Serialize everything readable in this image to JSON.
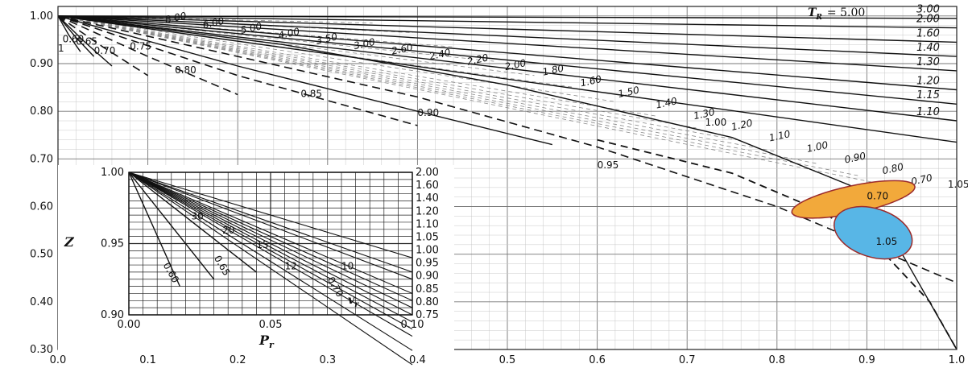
{
  "chart_data": [
    {
      "type": "line",
      "x_tick_labels": [
        "0.0",
        "0.1",
        "0.2",
        "0.3",
        "0.4",
        "0.5",
        "0.6",
        "0.7",
        "0.8",
        "0.9",
        "1.0"
      ],
      "y_tick_labels": [
        "0.30",
        "0.40",
        "0.50",
        "0.60",
        "0.70",
        "0.80",
        "0.90",
        "1.00"
      ],
      "xlim": [
        0.0,
        1.0
      ],
      "ylim": [
        0.3,
        1.02
      ],
      "grid": true,
      "tr_header": "T",
      "tr_header_subscript": "R",
      "tr_header_value": "= 5.00",
      "series": [
        {
          "name": "3.00",
          "x": [
            0,
            1.0
          ],
          "y": [
            1.0,
            0.995
          ]
        },
        {
          "name": "2.00",
          "x": [
            0,
            1.0
          ],
          "y": [
            1.0,
            0.975
          ]
        },
        {
          "name": "1.60",
          "x": [
            0,
            1.0
          ],
          "y": [
            1.0,
            0.945
          ]
        },
        {
          "name": "1.40",
          "x": [
            0,
            1.0
          ],
          "y": [
            1.0,
            0.915
          ]
        },
        {
          "name": "1.30",
          "x": [
            0,
            1.0
          ],
          "y": [
            1.0,
            0.885
          ]
        },
        {
          "name": "1.20",
          "x": [
            0,
            1.0
          ],
          "y": [
            1.0,
            0.845
          ]
        },
        {
          "name": "1.15",
          "x": [
            0,
            1.0
          ],
          "y": [
            1.0,
            0.815
          ]
        },
        {
          "name": "1.10",
          "x": [
            0,
            1.0
          ],
          "y": [
            1.0,
            0.78
          ]
        },
        {
          "name": "1.05",
          "x": [
            0,
            1.0
          ],
          "y": [
            1.0,
            0.735
          ]
        },
        {
          "name": "1.00",
          "x": [
            0,
            0.25,
            0.5,
            0.75,
            0.9,
            1.0
          ],
          "y": [
            1.0,
            0.94,
            0.855,
            0.745,
            0.63,
            0.3
          ]
        },
        {
          "name": "0.95",
          "x": [
            0,
            0.2,
            0.4,
            0.6,
            0.8,
            1.0
          ],
          "y": [
            1.0,
            0.915,
            0.83,
            0.725,
            0.6,
            0.44
          ]
        },
        {
          "name": "0.90",
          "x": [
            0,
            0.2,
            0.4,
            0.55
          ],
          "y": [
            1.0,
            0.895,
            0.8,
            0.73
          ]
        },
        {
          "name": "0.85",
          "x": [
            0,
            0.2,
            0.4
          ],
          "y": [
            1.0,
            0.875,
            0.77
          ]
        },
        {
          "name": "0.80",
          "x": [
            0,
            0.1,
            0.2
          ],
          "y": [
            1.0,
            0.915,
            0.835
          ]
        },
        {
          "name": "0.75",
          "x": [
            0,
            0.05,
            0.1
          ],
          "y": [
            1.0,
            0.935,
            0.875
          ]
        },
        {
          "name": "0.70",
          "x": [
            0,
            0.03,
            0.06
          ],
          "y": [
            1.0,
            0.945,
            0.895
          ]
        },
        {
          "name": "0.65",
          "x": [
            0,
            0.02,
            0.04
          ],
          "y": [
            1.0,
            0.955,
            0.915
          ]
        },
        {
          "name": "0.60",
          "x": [
            0,
            0.012,
            0.025
          ],
          "y": [
            1.0,
            0.96,
            0.925
          ]
        }
      ],
      "vr_labels": [
        "8.00",
        "6.00",
        "5.00",
        "4.00",
        "3.50",
        "3.00",
        "2.60",
        "2.40",
        "2.20",
        "2.00",
        "1.80",
        "1.60",
        "1.50",
        "1.40",
        "1.30",
        "1.20",
        "1.10",
        "1.00",
        "0.90",
        "0.80",
        "0.70"
      ],
      "misc_labels": [
        "1",
        "1.05"
      ]
    },
    {
      "type": "line",
      "xlabel": "P",
      "xlabel_subscript": "r",
      "ylabel": "Z",
      "x_tick_labels": [
        "0.00",
        "0.05",
        "0.10"
      ],
      "y_tick_labels": [
        "0.90",
        "0.95",
        "1.00"
      ],
      "right_tick_labels": [
        "2.00",
        "1.60",
        "1.40",
        "1.20",
        "1.10",
        "1.05",
        "1.00",
        "0.95",
        "0.90",
        "0.85",
        "0.80",
        "0.75"
      ],
      "xlim": [
        0.0,
        0.1
      ],
      "ylim": [
        0.9,
        1.0
      ],
      "grid": true,
      "series_labels": [
        "0.60",
        "0.65",
        "0.70"
      ],
      "vr_labels": [
        "30",
        "20",
        "15",
        "12",
        "10"
      ],
      "vr_symbol": "v",
      "vr_symbol_subscript": "r"
    }
  ],
  "highlights": [
    {
      "color": "#f2a93b",
      "stroke": "#9b2b2b",
      "value": "0.70"
    },
    {
      "color": "#58b6e6",
      "stroke": "#9b2b2b",
      "value": "1.05"
    }
  ]
}
